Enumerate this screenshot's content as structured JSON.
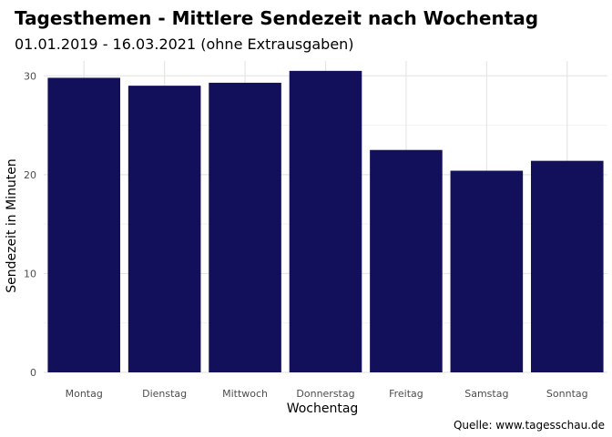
{
  "chart_data": {
    "type": "bar",
    "title": "Tagesthemen - Mittlere Sendezeit nach Wochentag",
    "subtitle": "01.01.2019 - 16.03.2021 (ohne Extrausgaben)",
    "xlabel": "Wochentag",
    "ylabel": "Sendezeit in Minuten",
    "caption": "Quelle: www.tagesschau.de",
    "categories": [
      "Montag",
      "Dienstag",
      "Mittwoch",
      "Donnerstag",
      "Freitag",
      "Samstag",
      "Sonntag"
    ],
    "values": [
      29.8,
      29.0,
      29.3,
      30.5,
      22.5,
      20.4,
      21.4
    ],
    "ylim": [
      0,
      31.5
    ],
    "yticks": [
      0,
      10,
      20,
      30
    ],
    "grid": true,
    "colors": {
      "bar": "#13105b",
      "grid_major": "#e6e6e6",
      "grid_minor": "#f2f2f2",
      "tick_text": "#4d4d4d"
    }
  }
}
